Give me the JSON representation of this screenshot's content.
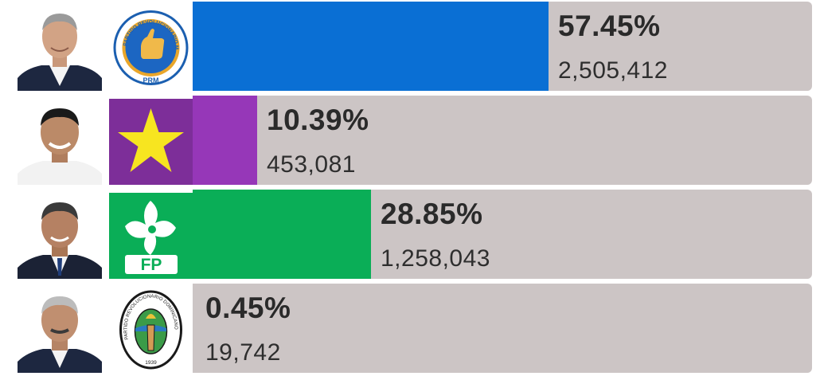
{
  "chart_data": {
    "type": "bar",
    "orientation": "horizontal",
    "xlim": [
      0,
      100
    ],
    "categories": [
      "PRM",
      "Estrella",
      "FP",
      "PRD"
    ],
    "values": [
      57.45,
      10.39,
      28.85,
      0.45
    ],
    "votes": [
      "2,505,412",
      "453,081",
      "1,258,043",
      "19,742"
    ],
    "labels": [
      "57.45%",
      "10.39%",
      "28.85%",
      "0.45%"
    ],
    "colors": [
      "#0a6fd4",
      "#9637b8",
      "#0aae57",
      "#ccc5c5"
    ],
    "track_color": "#ccc5c5"
  },
  "logos": {
    "prm_text": "PARTIDO REVOLUCIONARIO MODERNO",
    "prm_abbr": "PRM",
    "fp_abbr": "FP",
    "prd_text": "PARTIDO REVOLUCIONARIO DOMINICANO",
    "prd_year": "1939"
  },
  "icons": [
    "candidate-photo",
    "prm-thumbs-up-logo",
    "star-logo",
    "fp-flower-logo",
    "prd-seal-logo"
  ]
}
